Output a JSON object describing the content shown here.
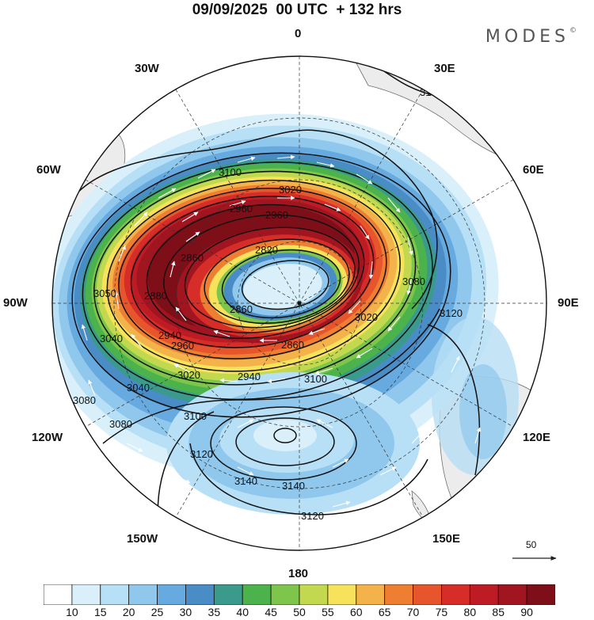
{
  "header": {
    "title": "09/09/2025  00 UTC  + 132 hrs",
    "brand": "MODES",
    "brand_mark": "©"
  },
  "map": {
    "projection": "south-polar-stereographic",
    "longitude_labels": {
      "lon_0": "0",
      "lon_30e": "30E",
      "lon_60e": "60E",
      "lon_90e": "90E",
      "lon_120e": "120E",
      "lon_150e": "150E",
      "lon_180": "180",
      "lon_150w": "150W",
      "lon_120w": "120W",
      "lon_90w": "90W",
      "lon_60w": "60W",
      "lon_30w": "30W"
    },
    "contour_labels": [
      "3100",
      "3100",
      "3020",
      "2960",
      "2960",
      "2820",
      "2860",
      "2880",
      "3080",
      "3050",
      "3040",
      "2940",
      "2960",
      "2860",
      "2860",
      "3020",
      "3120",
      "3040",
      "3020",
      "2940",
      "3100",
      "3080",
      "3080",
      "3100",
      "3120",
      "3140",
      "3140",
      "3120"
    ],
    "wind_reference": {
      "value": "50"
    },
    "colors": {
      "land": "#ececec",
      "coast": "#6d6d6d"
    }
  },
  "colorbar": {
    "labels": [
      "10",
      "15",
      "20",
      "25",
      "30",
      "35",
      "40",
      "45",
      "50",
      "55",
      "60",
      "65",
      "70",
      "75",
      "80",
      "85",
      "90"
    ],
    "colors": [
      "#ffffff",
      "#d9f0fb",
      "#b7dff5",
      "#8fc8ec",
      "#66aadf",
      "#4a8cc6",
      "#3a9a8b",
      "#4cb34c",
      "#7dc64b",
      "#c2d94f",
      "#f7e35b",
      "#f4b24a",
      "#ee7f32",
      "#e6552b",
      "#d62d28",
      "#be1b24",
      "#a01520",
      "#7e0f18"
    ]
  }
}
